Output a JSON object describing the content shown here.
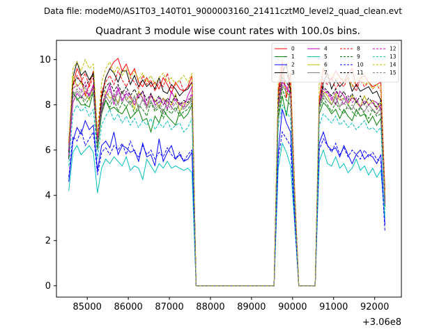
{
  "chart_data": {
    "type": "line",
    "suptitle": "Data file: modeM0/AS1T03_140T01_9000003160_21411cztM0_level2_quad_clean.evt",
    "title": "Quadrant 3 module wise count rates with 100.0s bins.",
    "xlabel": "",
    "ylabel": "",
    "x_offset_label": "+3.06e8",
    "xlim": [
      84250,
      92650
    ],
    "ylim": [
      -0.5,
      10.85
    ],
    "xticks": [
      85000,
      86000,
      87000,
      88000,
      89000,
      90000,
      91000,
      92000
    ],
    "xtick_labels": [
      "85000",
      "86000",
      "87000",
      "88000",
      "89000",
      "90000",
      "91000",
      "92000"
    ],
    "yticks": [
      0,
      2,
      4,
      6,
      8,
      10
    ],
    "ytick_labels": [
      "0",
      "2",
      "4",
      "6",
      "8",
      "10"
    ],
    "legend_position": "top-right",
    "segments": [
      {
        "name": "seg1",
        "x_start": 84550,
        "step": 100,
        "count": 31
      },
      {
        "name": "seg2",
        "x_start": 89650,
        "step": 100,
        "count": 5
      },
      {
        "name": "seg3",
        "x_start": 90650,
        "step": 100,
        "count": 17
      }
    ],
    "gaps": [
      {
        "x": [
          87650,
          89550
        ]
      },
      {
        "x": [
          90150,
          90550
        ]
      }
    ],
    "series": [
      {
        "name": "0",
        "color": "#ff0000",
        "dash": false,
        "seg1": [
          6.4,
          8.9,
          9.6,
          9.2,
          8.4,
          8.9,
          9.5,
          6.2,
          8.4,
          9.2,
          9.6,
          9.9,
          10.05,
          9.5,
          9.8,
          9.3,
          9.6,
          9.0,
          8.8,
          9.2,
          8.8,
          9.0,
          8.7,
          9.2,
          8.9,
          8.5,
          9.0,
          8.7,
          8.6,
          8.8,
          9.3
        ],
        "seg2": [
          8.6,
          9.9,
          8.3,
          9.4,
          4.3
        ],
        "seg3": [
          8.2,
          9.6,
          9.2,
          9.1,
          9.5,
          9.2,
          9.0,
          9.4,
          9.6,
          8.8,
          9.2,
          9.3,
          9.0,
          8.8,
          8.9,
          9.0,
          4.2
        ]
      },
      {
        "name": "1",
        "color": "#008000",
        "dash": false,
        "seg1": [
          6.1,
          8.5,
          8.3,
          8.0,
          8.0,
          7.9,
          8.6,
          6.0,
          7.6,
          8.2,
          7.8,
          7.9,
          7.7,
          7.6,
          7.9,
          7.4,
          7.6,
          7.8,
          7.3,
          7.4,
          6.8,
          7.5,
          7.2,
          7.8,
          7.5,
          7.3,
          7.1,
          7.7,
          7.4,
          7.6,
          8.0
        ],
        "seg2": [
          7.4,
          8.4,
          7.5,
          8.8,
          3.8
        ],
        "seg3": [
          7.6,
          8.1,
          7.9,
          7.6,
          7.8,
          7.4,
          7.8,
          7.5,
          7.3,
          7.8,
          7.5,
          7.6,
          7.2,
          7.5,
          7.1,
          7.4,
          3.5
        ]
      },
      {
        "name": "2",
        "color": "#0000ff",
        "dash": false,
        "seg1": [
          4.6,
          6.4,
          7.0,
          6.7,
          7.3,
          6.9,
          7.1,
          5.1,
          6.2,
          6.4,
          6.1,
          6.8,
          5.8,
          6.2,
          6.1,
          5.9,
          6.0,
          5.5,
          6.3,
          5.7,
          5.8,
          5.3,
          6.5,
          5.5,
          5.9,
          6.2,
          5.6,
          5.8,
          5.5,
          5.6,
          5.9
        ],
        "seg2": [
          5.9,
          7.8,
          7.2,
          6.8,
          3.2
        ],
        "seg3": [
          6.3,
          6.8,
          6.2,
          6.0,
          6.1,
          5.7,
          6.2,
          5.8,
          5.4,
          5.8,
          6.0,
          5.6,
          5.8,
          5.7,
          5.4,
          5.8,
          2.7
        ]
      },
      {
        "name": "3",
        "color": "#000000",
        "dash": false,
        "seg1": [
          5.6,
          9.2,
          9.9,
          9.3,
          9.5,
          9.1,
          9.4,
          6.2,
          8.3,
          9.2,
          9.6,
          9.4,
          9.0,
          9.5,
          9.5,
          8.9,
          9.3,
          8.8,
          9.1,
          8.8,
          9.0,
          8.7,
          9.2,
          8.6,
          8.5,
          8.9,
          8.7,
          8.4,
          8.6,
          8.7,
          9.0
        ],
        "seg2": [
          8.5,
          9.4,
          9.8,
          8.6,
          4.0
        ],
        "seg3": [
          8.0,
          9.0,
          9.4,
          8.7,
          9.1,
          8.8,
          9.0,
          9.2,
          8.6,
          8.9,
          8.6,
          8.7,
          8.8,
          8.5,
          8.6,
          8.2,
          3.8
        ]
      },
      {
        "name": "4",
        "color": "#bf00bf",
        "dash": false,
        "seg1": [
          5.8,
          8.1,
          8.5,
          8.3,
          8.6,
          8.4,
          8.9,
          6.3,
          7.7,
          8.4,
          8.9,
          8.0,
          8.7,
          8.2,
          8.5,
          8.3,
          8.0,
          8.4,
          8.6,
          7.9,
          8.5,
          8.0,
          8.1,
          8.3,
          7.8,
          8.6,
          8.2,
          8.0,
          7.9,
          8.4,
          8.8
        ],
        "seg2": [
          7.9,
          9.0,
          8.8,
          8.5,
          3.9
        ],
        "seg3": [
          8.1,
          8.5,
          8.6,
          8.3,
          8.0,
          8.6,
          8.4,
          8.1,
          8.3,
          8.2,
          7.9,
          8.4,
          8.0,
          8.2,
          8.1,
          7.8,
          3.6
        ]
      },
      {
        "name": "5",
        "color": "#00bfbf",
        "dash": false,
        "seg1": [
          4.2,
          5.9,
          6.2,
          5.8,
          6.0,
          6.2,
          5.9,
          4.1,
          5.2,
          5.6,
          5.4,
          5.7,
          5.5,
          5.3,
          5.7,
          5.1,
          5.3,
          5.2,
          4.7,
          5.6,
          5.3,
          5.0,
          5.4,
          5.2,
          5.5,
          5.2,
          5.3,
          5.2,
          5.1,
          5.2,
          5.0
        ],
        "seg2": [
          5.2,
          6.3,
          5.9,
          5.3,
          2.8
        ],
        "seg3": [
          5.5,
          6.0,
          5.4,
          5.3,
          5.7,
          5.2,
          5.4,
          5.0,
          5.2,
          5.6,
          5.1,
          5.3,
          4.9,
          5.2,
          4.8,
          5.1,
          3.0
        ]
      },
      {
        "name": "6",
        "color": "#bfbf00",
        "dash": false,
        "seg1": [
          5.9,
          9.3,
          8.8,
          9.0,
          8.5,
          8.2,
          8.8,
          6.4,
          7.9,
          8.6,
          8.3,
          8.4,
          8.1,
          8.6,
          8.2,
          8.4,
          7.8,
          8.6,
          8.3,
          7.9,
          8.4,
          8.2,
          7.9,
          8.3,
          8.1,
          8.0,
          8.5,
          7.7,
          8.1,
          8.0,
          8.3
        ],
        "seg2": [
          8.0,
          9.3,
          8.5,
          8.4,
          3.9
        ],
        "seg3": [
          8.2,
          8.6,
          8.4,
          8.0,
          8.5,
          8.2,
          8.3,
          8.0,
          8.4,
          8.1,
          7.9,
          8.4,
          8.0,
          8.2,
          7.8,
          8.1,
          3.7
        ]
      },
      {
        "name": "7",
        "color": "#808080",
        "dash": false,
        "seg1": [
          6.2,
          8.3,
          8.6,
          8.4,
          8.2,
          8.5,
          8.7,
          6.0,
          7.9,
          8.4,
          8.1,
          8.5,
          8.0,
          8.6,
          8.2,
          8.0,
          8.4,
          7.8,
          8.3,
          7.9,
          8.2,
          7.8,
          8.0,
          7.6,
          8.2,
          7.9,
          7.7,
          8.1,
          7.8,
          8.0,
          8.2
        ],
        "seg2": [
          7.8,
          8.8,
          8.6,
          8.3,
          3.8
        ],
        "seg3": [
          7.9,
          8.5,
          8.2,
          8.0,
          8.4,
          7.9,
          8.3,
          8.0,
          7.8,
          8.2,
          7.9,
          7.7,
          8.0,
          7.8,
          7.6,
          7.9,
          3.6
        ]
      },
      {
        "name": "8",
        "color": "#ff0000",
        "dash": true,
        "seg1": [
          6.3,
          8.8,
          9.3,
          9.0,
          9.4,
          8.8,
          9.2,
          6.6,
          8.6,
          9.0,
          9.3,
          8.9,
          9.5,
          9.1,
          8.8,
          9.2,
          9.0,
          8.7,
          9.3,
          8.9,
          9.1,
          8.6,
          9.0,
          8.8,
          9.4,
          8.7,
          8.9,
          9.1,
          8.6,
          8.8,
          9.0
        ],
        "seg2": [
          8.4,
          9.6,
          9.4,
          8.9,
          4.1
        ],
        "seg3": [
          8.3,
          9.1,
          8.9,
          9.2,
          8.7,
          9.0,
          8.8,
          9.2,
          8.9,
          8.6,
          9.1,
          8.8,
          9.0,
          8.7,
          8.9,
          8.6,
          3.9
        ]
      },
      {
        "name": "9",
        "color": "#008000",
        "dash": true,
        "seg1": [
          6.0,
          8.6,
          8.2,
          8.4,
          8.0,
          8.3,
          8.5,
          6.1,
          7.8,
          8.2,
          7.9,
          8.3,
          7.7,
          8.1,
          7.9,
          8.2,
          7.6,
          8.0,
          7.8,
          7.5,
          8.1,
          7.7,
          7.9,
          7.4,
          7.8,
          7.6,
          7.9,
          7.5,
          7.7,
          7.8,
          8.1
        ],
        "seg2": [
          7.6,
          8.7,
          8.2,
          8.0,
          3.8
        ],
        "seg3": [
          7.8,
          8.3,
          8.0,
          7.7,
          8.1,
          7.8,
          7.6,
          8.0,
          7.7,
          7.5,
          7.9,
          7.6,
          7.4,
          7.8,
          7.5,
          7.6,
          3.5
        ]
      },
      {
        "name": "10",
        "color": "#0000ff",
        "dash": true,
        "seg1": [
          4.8,
          6.6,
          6.4,
          6.9,
          6.2,
          6.5,
          6.8,
          4.9,
          5.9,
          6.1,
          5.8,
          6.2,
          6.0,
          6.3,
          5.8,
          6.4,
          5.9,
          5.7,
          6.2,
          5.8,
          6.0,
          5.6,
          5.9,
          5.7,
          6.1,
          5.8,
          5.6,
          5.9,
          5.5,
          5.8,
          6.0
        ],
        "seg2": [
          5.6,
          6.8,
          6.5,
          6.2,
          2.9
        ],
        "seg3": [
          6.0,
          6.5,
          6.2,
          5.9,
          6.3,
          5.8,
          6.1,
          5.7,
          6.0,
          5.8,
          5.6,
          6.0,
          5.7,
          5.9,
          5.6,
          5.5,
          2.4
        ]
      },
      {
        "name": "11",
        "color": "#000000",
        "dash": true,
        "seg1": [
          5.9,
          8.9,
          9.2,
          9.0,
          8.8,
          9.1,
          9.3,
          6.3,
          8.3,
          8.8,
          9.0,
          8.6,
          8.9,
          8.5,
          8.8,
          8.4,
          8.7,
          8.3,
          8.6,
          8.2,
          8.5,
          8.1,
          8.4,
          8.0,
          8.3,
          8.1,
          8.4,
          8.0,
          8.2,
          8.1,
          8.4
        ],
        "seg2": [
          8.2,
          9.2,
          9.0,
          8.7,
          3.9
        ],
        "seg3": [
          8.0,
          8.8,
          8.6,
          8.4,
          8.7,
          8.3,
          8.6,
          8.2,
          8.5,
          8.1,
          8.4,
          8.0,
          8.3,
          8.1,
          7.9,
          8.2,
          3.7
        ]
      },
      {
        "name": "12",
        "color": "#bf00bf",
        "dash": true,
        "seg1": [
          6.0,
          8.7,
          8.9,
          8.6,
          9.0,
          8.4,
          8.8,
          6.4,
          8.0,
          8.5,
          8.7,
          8.3,
          8.8,
          8.2,
          8.6,
          8.4,
          8.1,
          8.5,
          8.3,
          8.0,
          8.4,
          8.1,
          8.3,
          8.0,
          8.2,
          7.9,
          8.3,
          8.0,
          8.1,
          8.2,
          8.5
        ],
        "seg2": [
          8.0,
          9.1,
          8.7,
          8.5,
          3.9
        ],
        "seg3": [
          8.1,
          8.7,
          8.5,
          8.2,
          8.6,
          8.3,
          8.0,
          8.4,
          8.1,
          8.3,
          7.9,
          8.2,
          8.0,
          8.1,
          7.8,
          8.0,
          3.6
        ]
      },
      {
        "name": "13",
        "color": "#00bfbf",
        "dash": true,
        "seg1": [
          5.3,
          7.6,
          8.0,
          7.7,
          7.9,
          7.5,
          7.8,
          5.6,
          7.1,
          7.5,
          7.8,
          7.3,
          7.6,
          7.2,
          7.5,
          7.1,
          7.4,
          7.0,
          7.3,
          7.1,
          7.4,
          6.9,
          7.2,
          7.0,
          7.3,
          6.9,
          7.1,
          7.2,
          6.8,
          7.0,
          7.4
        ],
        "seg2": [
          7.0,
          8.0,
          7.7,
          7.4,
          3.5
        ],
        "seg3": [
          7.1,
          7.6,
          7.4,
          7.2,
          7.5,
          7.1,
          7.3,
          7.0,
          7.2,
          6.9,
          7.1,
          7.3,
          6.9,
          7.0,
          6.8,
          7.0,
          3.2
        ]
      },
      {
        "name": "14",
        "color": "#bfbf00",
        "dash": true,
        "seg1": [
          6.4,
          9.6,
          9.9,
          9.5,
          10.0,
          9.6,
          9.8,
          6.8,
          9.0,
          9.6,
          9.9,
          9.4,
          9.7,
          9.3,
          9.6,
          9.2,
          9.5,
          9.1,
          9.4,
          9.0,
          9.3,
          8.9,
          9.2,
          9.4,
          9.0,
          9.2,
          8.9,
          9.1,
          9.3,
          9.0,
          9.4
        ],
        "seg2": [
          9.0,
          10.0,
          9.6,
          9.3,
          4.2
        ],
        "seg3": [
          8.9,
          9.5,
          9.2,
          9.4,
          9.1,
          9.3,
          9.0,
          9.2,
          8.8,
          9.1,
          9.3,
          8.9,
          9.0,
          8.7,
          8.9,
          8.8,
          4.0
        ]
      },
      {
        "name": "15",
        "color": "#808080",
        "dash": true,
        "seg1": [
          6.1,
          8.4,
          8.7,
          8.5,
          8.8,
          8.3,
          8.6,
          6.2,
          7.9,
          8.3,
          8.6,
          8.2,
          8.5,
          8.1,
          8.4,
          8.0,
          8.3,
          7.9,
          8.2,
          7.8,
          8.1,
          7.9,
          8.2,
          7.7,
          8.0,
          7.8,
          8.1,
          7.7,
          7.9,
          8.0,
          8.3
        ],
        "seg2": [
          7.9,
          8.9,
          8.6,
          8.3,
          3.8
        ],
        "seg3": [
          7.9,
          8.4,
          8.2,
          8.0,
          8.3,
          7.9,
          8.1,
          7.8,
          8.0,
          7.7,
          7.9,
          8.1,
          7.7,
          7.8,
          7.6,
          7.8,
          3.6
        ]
      }
    ]
  }
}
